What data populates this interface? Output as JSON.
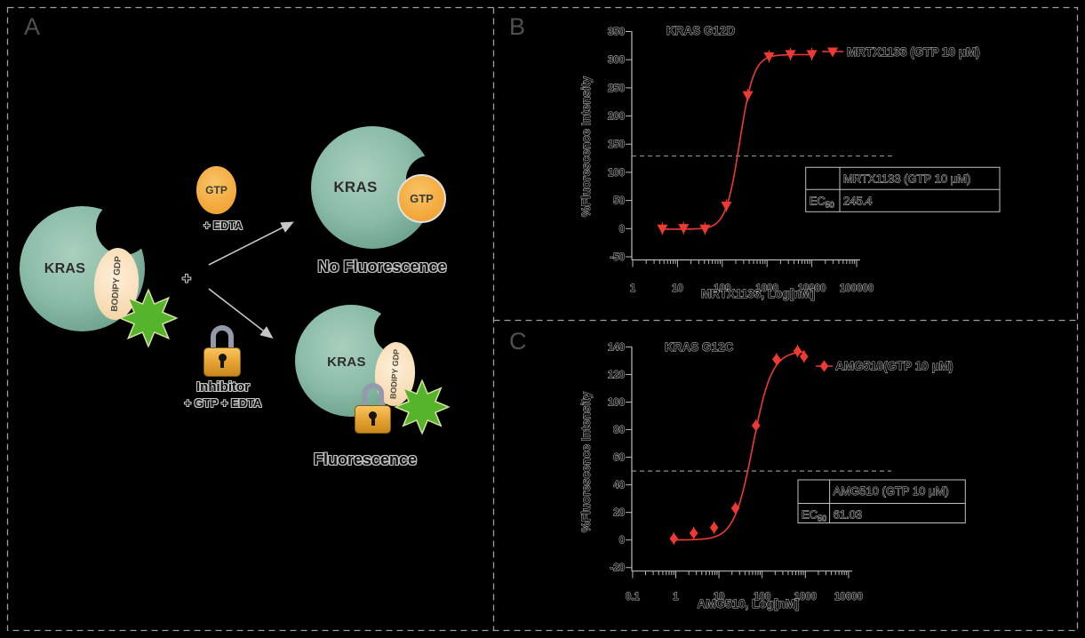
{
  "panel_a": {
    "letter": "A",
    "kras_label": "KRAS",
    "bodipy_label": "BODIPY GDP",
    "plus": "+",
    "gtp_label": "GTP",
    "edta_note": "+ EDTA",
    "no_fluorescence": "No Fluorescence",
    "inhibitor_label": "Inhibitor",
    "inhibitor_note": "+ GTP + EDTA",
    "fluorescence": "Fluorescence"
  },
  "panel_b": {
    "letter": "B"
  },
  "panel_c": {
    "letter": "C"
  },
  "colors": {
    "background": "#000000",
    "curve_red": "#ee3a33",
    "teal_protein": "#8cbda8",
    "orange_gtp": "#f4aa3e",
    "peach_bodipy": "#f9dfba",
    "star_green": "#55b32c",
    "dashed_border": "#9f9f9f",
    "axis_gray": "#b9b9b9"
  },
  "chart_data": [
    {
      "type": "line",
      "panel": "B",
      "title": "KRAS G12D",
      "xlabel": "MRTX1133, Log[nM]",
      "ylabel": "%Fluorescence Intensity",
      "x_scale": "log",
      "xticks": [
        1,
        10,
        100,
        1000,
        10000,
        100000
      ],
      "xtick_labels": [
        "1",
        "10",
        "100",
        "1000",
        "10000",
        "100000"
      ],
      "yticks": [
        -50,
        0,
        50,
        100,
        150,
        200,
        250,
        300,
        350
      ],
      "ylim": [
        -50,
        350
      ],
      "xlim": [
        1,
        100000
      ],
      "grid": false,
      "dashed_line_y": 129,
      "legend": {
        "label": "MRTX1133 (GTP 10 μM)",
        "marker": "triangle-down",
        "position": "upper right"
      },
      "series": [
        {
          "name": "MRTX1133 (GTP 10 μM)",
          "marker": "triangle-down",
          "color": "#ee3a33",
          "x": [
            4.6,
            13.7,
            41.2,
            123.5,
            370.4,
            1111,
            3333,
            10000
          ],
          "y": [
            0,
            1,
            0,
            41,
            237,
            306,
            310,
            310
          ],
          "fit": {
            "bottom": -1,
            "top": 309,
            "ec50": 245.4,
            "hill": 2.8,
            "range": [
              4.2,
              10800
            ]
          }
        }
      ],
      "table": {
        "header": [
          "",
          "MRTX1133 (GTP 10 μM)"
        ],
        "ec_label": "EC",
        "ec_sub": "50",
        "ec_value": "245.4"
      }
    },
    {
      "type": "line",
      "panel": "C",
      "title": "KRAS G12C",
      "xlabel": "AMG510, Log[nM]",
      "ylabel": "%Fluorescence Intensity",
      "x_scale": "log",
      "xticks": [
        0.1,
        1,
        10,
        100,
        1000,
        10000
      ],
      "xtick_labels": [
        "0.1",
        "1",
        "10",
        "100",
        "1000",
        "10000"
      ],
      "yticks": [
        -20,
        0,
        20,
        40,
        60,
        80,
        100,
        120,
        140
      ],
      "ylim": [
        -20,
        140
      ],
      "xlim": [
        0.1,
        10000
      ],
      "grid": false,
      "dashed_line_y": 50,
      "legend": {
        "label": "AMG510(GTP 10 μM)",
        "marker": "diamond",
        "position": "upper right"
      },
      "series": [
        {
          "name": "AMG510(GTP 10 μM)",
          "marker": "diamond",
          "color": "#ee3a33",
          "x": [
            0.9,
            2.6,
            7.7,
            24,
            72,
            215,
            660,
            930
          ],
          "y": [
            1,
            5,
            9,
            23,
            83,
            131,
            137,
            133
          ],
          "fit": {
            "bottom": 0,
            "top": 137,
            "ec50": 61.03,
            "hill": 2.0,
            "range": [
              0.82,
              980
            ]
          }
        }
      ],
      "table": {
        "header": [
          "",
          "AMG510 (GTP 10 μM)"
        ],
        "ec_label": "EC",
        "ec_sub": "50",
        "ec_value": "61.03"
      }
    }
  ]
}
